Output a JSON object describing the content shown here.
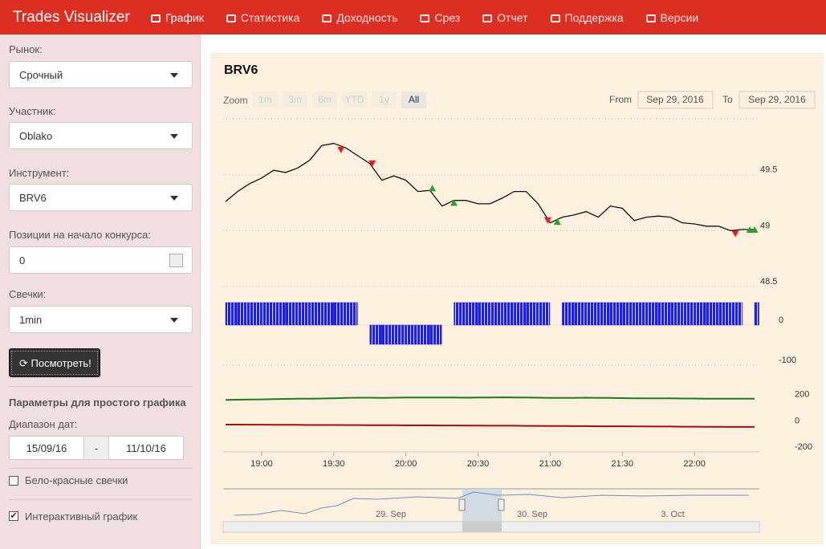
{
  "navbar": {
    "brand": "Trades Visualizer",
    "items": [
      "График",
      "Статистика",
      "Доходность",
      "Срез",
      "Отчет",
      "Поддержка",
      "Версии"
    ]
  },
  "sidebar": {
    "market_label": "Рынок:",
    "market": "Срочный",
    "participant_label": "Участник:",
    "participant": "Oblako",
    "instrument_label": "Инструмент:",
    "instrument": "BRV6",
    "positions_label": "Позиции на начало конкурса:",
    "positions": "0",
    "candles_label": "Свечки:",
    "candles": "1min",
    "button": "Посмотреть!",
    "section_title": "Параметры для простого графика",
    "date_range_label": "Диапазон дат:",
    "date_from": "15/09/16",
    "date_sep": "-",
    "date_to": "11/10/16",
    "checkbox_1": "Бело-красные свечки",
    "checkbox_2": "Интерактивный график"
  },
  "range_selector": {
    "zoom_label": "Zoom",
    "buttons": [
      "1m",
      "3m",
      "6m",
      "YTD",
      "1y",
      "All"
    ],
    "from_label": "From",
    "from": "Sep 29, 2016",
    "to_label": "To",
    "to": "Sep 29, 2016",
    "navigator_labels": [
      "29. Sep",
      "30. Sep",
      "3. Oct"
    ]
  },
  "chart_data": [
    {
      "type": "line",
      "title": "BRV6",
      "x": [
        "18:45",
        "18:50",
        "18:55",
        "19:00",
        "19:05",
        "19:10",
        "19:15",
        "19:20",
        "19:25",
        "19:30",
        "19:35",
        "19:40",
        "19:45",
        "19:50",
        "19:55",
        "20:00",
        "20:05",
        "20:10",
        "20:15",
        "20:20",
        "20:25",
        "20:30",
        "20:35",
        "20:40",
        "20:45",
        "20:50",
        "20:55",
        "21:00",
        "21:05",
        "21:10",
        "21:15",
        "21:20",
        "21:25",
        "21:30",
        "21:35",
        "21:40",
        "21:45",
        "21:50",
        "21:55",
        "22:00",
        "22:05",
        "22:10",
        "22:15",
        "22:20",
        "22:25"
      ],
      "series": [
        {
          "color": "#111111",
          "values": [
            49.26,
            49.35,
            49.42,
            49.47,
            49.54,
            49.52,
            49.56,
            49.63,
            49.76,
            49.78,
            49.74,
            49.67,
            49.6,
            49.45,
            49.49,
            49.45,
            49.35,
            49.36,
            49.22,
            49.27,
            49.27,
            49.24,
            49.24,
            49.29,
            49.35,
            49.35,
            49.24,
            49.07,
            49.12,
            49.14,
            49.17,
            49.12,
            49.22,
            49.2,
            49.09,
            49.12,
            49.13,
            49.12,
            49.07,
            49.06,
            49.04,
            49.04,
            49.0,
            49.01,
            49.01
          ]
        }
      ],
      "buy_markers": {
        "color": "#2e9e2e",
        "x": [
          "20:11",
          "20:20",
          "21:03",
          "22:23",
          "22:25"
        ],
        "values": [
          49.38,
          49.25,
          49.08,
          49.01,
          49.01
        ]
      },
      "sell_markers": {
        "color": "#e02020",
        "x": [
          "19:33",
          "19:46",
          "20:59",
          "22:17"
        ],
        "values": [
          49.72,
          49.6,
          49.09,
          48.97
        ]
      },
      "xlim": [
        "18:44",
        "22:27"
      ],
      "ylim": [
        48.5,
        50
      ],
      "yticks": [
        48.5,
        49,
        49.5
      ],
      "grid": true
    },
    {
      "type": "bar",
      "x": [
        "18:45",
        "18:50",
        "18:55",
        "19:00",
        "19:05",
        "19:10",
        "19:15",
        "19:20",
        "19:25",
        "19:30",
        "19:35",
        "19:40",
        "19:45",
        "19:50",
        "19:55",
        "20:00",
        "20:05",
        "20:10",
        "20:15",
        "20:20",
        "20:25",
        "20:30",
        "20:35",
        "20:40",
        "20:45",
        "20:50",
        "20:55",
        "21:00",
        "21:05",
        "21:10",
        "21:15",
        "21:20",
        "21:25",
        "21:30",
        "21:35",
        "21:40",
        "21:45",
        "21:50",
        "21:55",
        "22:00",
        "22:05",
        "22:10",
        "22:15",
        "22:20",
        "22:25"
      ],
      "values": [
        56,
        56,
        56,
        56,
        56,
        56,
        56,
        56,
        56,
        56,
        56,
        0,
        -48,
        -48,
        -48,
        -48,
        -48,
        -48,
        0,
        56,
        56,
        56,
        56,
        56,
        56,
        56,
        56,
        0,
        56,
        56,
        56,
        56,
        56,
        56,
        56,
        56,
        56,
        56,
        56,
        56,
        56,
        56,
        56,
        0,
        56
      ],
      "color": "#2020d0",
      "xlim": [
        "18:44",
        "22:27"
      ],
      "ylim": [
        -120,
        80
      ],
      "yticks": [
        -100,
        0
      ],
      "grid": true
    },
    {
      "type": "line",
      "x": [
        "18:45",
        "18:50",
        "18:55",
        "19:00",
        "19:05",
        "19:10",
        "19:15",
        "19:20",
        "19:25",
        "19:30",
        "19:35",
        "19:40",
        "19:45",
        "19:50",
        "19:55",
        "20:00",
        "20:05",
        "20:10",
        "20:15",
        "20:20",
        "20:25",
        "20:30",
        "20:35",
        "20:40",
        "20:45",
        "20:50",
        "20:55",
        "21:00",
        "21:05",
        "21:10",
        "21:15",
        "21:20",
        "21:25",
        "21:30",
        "21:35",
        "21:40",
        "21:45",
        "21:50",
        "21:55",
        "22:00",
        "22:05",
        "22:10",
        "22:15",
        "22:20",
        "22:25"
      ],
      "series": [
        {
          "color": "#1e7a1e",
          "values": [
            195,
            197,
            198,
            199,
            201,
            203,
            204,
            205,
            206,
            208,
            210,
            212,
            212,
            211,
            212,
            213,
            213,
            214,
            214,
            213,
            212,
            213,
            214,
            215,
            214,
            213,
            212,
            211,
            210,
            211,
            212,
            211,
            210,
            209,
            208,
            208,
            207,
            207,
            206,
            206,
            205,
            205,
            205,
            205,
            205
          ]
        },
        {
          "color": "#9b1010",
          "values": [
            8,
            8,
            7,
            7,
            6,
            6,
            6,
            5,
            5,
            5,
            4,
            4,
            3,
            3,
            3,
            2,
            2,
            2,
            1,
            1,
            0,
            0,
            -1,
            -1,
            -1,
            -2,
            -2,
            -3,
            -3,
            -4,
            -4,
            -5,
            -5,
            -5,
            -6,
            -6,
            -7,
            -7,
            -8,
            -8,
            -9,
            -9,
            -10,
            -10,
            -10
          ]
        }
      ],
      "xlim": [
        "18:44",
        "22:27"
      ],
      "ylim": [
        -230,
        270
      ],
      "yticks": [
        -200,
        0,
        200
      ],
      "grid": false,
      "xticks": [
        "19:00",
        "19:30",
        "20:00",
        "20:30",
        "21:00",
        "21:30",
        "22:00"
      ]
    }
  ]
}
